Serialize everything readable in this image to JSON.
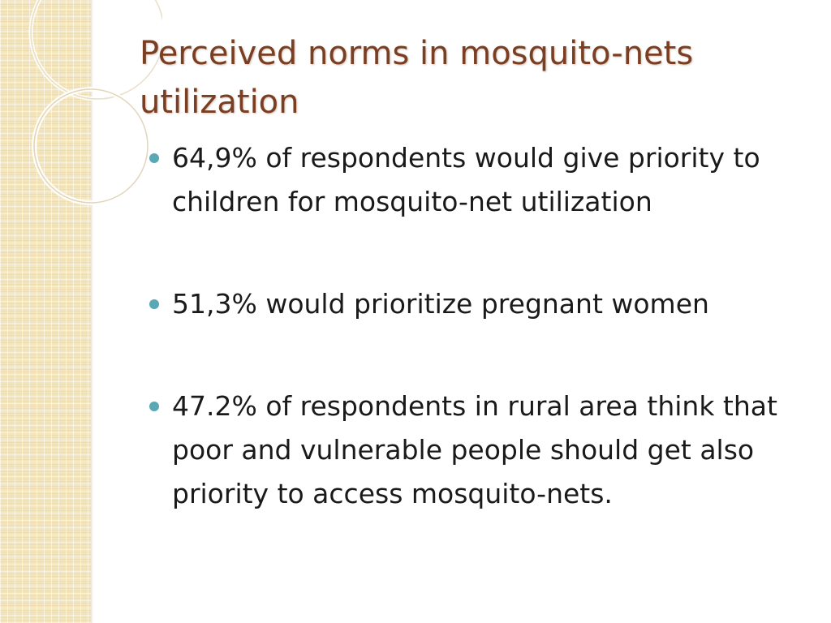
{
  "slide": {
    "title": "Perceived norms in mosquito-nets utilization",
    "bullets": [
      {
        "text": "64,9% of respondents would give priority to children for mosquito-net utilization"
      },
      {
        "text": "51,3% would prioritize pregnant women"
      },
      {
        "text": "47.2% of respondents in rural area think that poor and vulnerable people should get also priority to access mosquito-nets."
      }
    ]
  },
  "colors": {
    "title": "#7a3f22",
    "bullet_marker": "#5aa7b5",
    "side_panel": "#f3e6bf"
  }
}
